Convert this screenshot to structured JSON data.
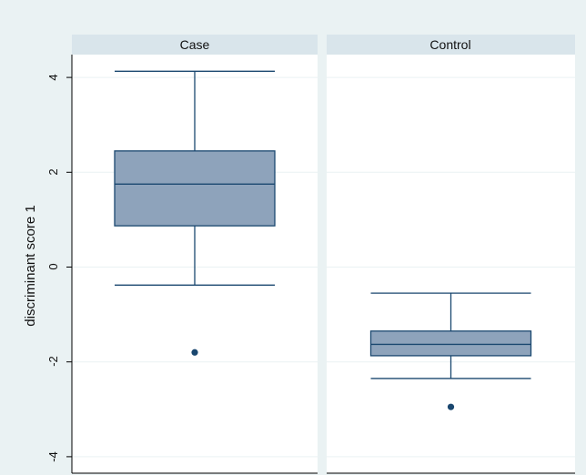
{
  "chart_data": {
    "type": "boxplot",
    "ylabel": "discriminant score 1",
    "xlabel": "",
    "title": "",
    "ylim": [
      -4.3,
      4.3
    ],
    "yticks": [
      -4,
      -2,
      0,
      2,
      4
    ],
    "tick_labels": [
      "-4",
      "-2",
      "0",
      "2",
      "4"
    ],
    "grid": true,
    "panels": [
      {
        "label": "Case",
        "whisker_low": -0.38,
        "q1": 0.87,
        "median": 1.75,
        "q3": 2.45,
        "whisker_high": 4.13,
        "outliers": [
          -1.8
        ]
      },
      {
        "label": "Control",
        "whisker_low": -2.35,
        "q1": -1.87,
        "median": -1.63,
        "q3": -1.35,
        "whisker_high": -0.55,
        "outliers": [
          -2.95
        ]
      }
    ]
  },
  "colors": {
    "outer_background": "#eaf2f3",
    "plot_background": "#ffffff",
    "strip_background": "#d9e5eb",
    "box_fill": "#8ea3bb",
    "box_line": "#1a476f",
    "marker": "#1a476f",
    "grid": "#eaf2f3",
    "axis": "#000000"
  }
}
